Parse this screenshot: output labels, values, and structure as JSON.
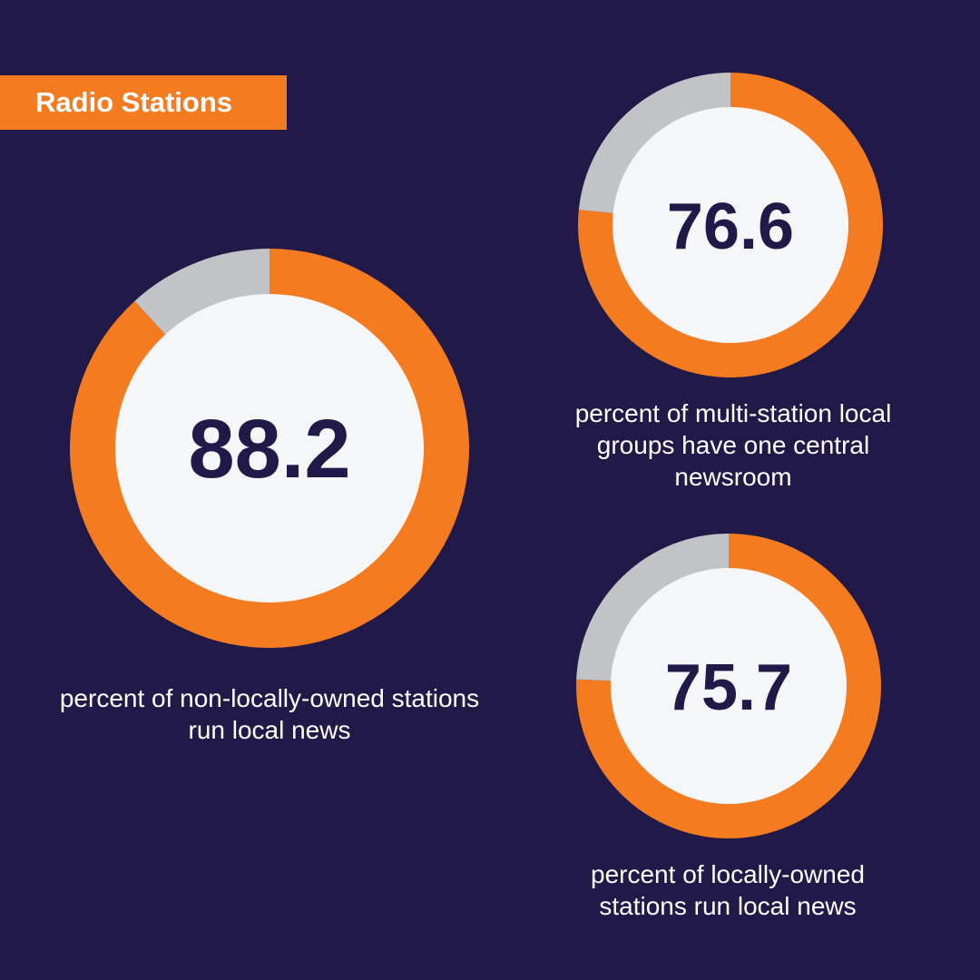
{
  "header": {
    "title": "Radio Stations"
  },
  "colors": {
    "background": "#211a49",
    "accent": "#f47b20",
    "remainder": "#c2c3c6",
    "center": "#f4f6f8",
    "value_text": "#211a49"
  },
  "chart_data": [
    {
      "type": "pie",
      "value_label": "88.2",
      "values": [
        88.2,
        11.8
      ],
      "caption": "percent of non-locally-owned stations run local news"
    },
    {
      "type": "pie",
      "value_label": "76.6",
      "values": [
        76.6,
        23.4
      ],
      "caption": "percent of multi-station local groups have one central newsroom"
    },
    {
      "type": "pie",
      "value_label": "75.7",
      "values": [
        75.7,
        24.3
      ],
      "caption": "percent of locally-owned stations run local news"
    }
  ]
}
